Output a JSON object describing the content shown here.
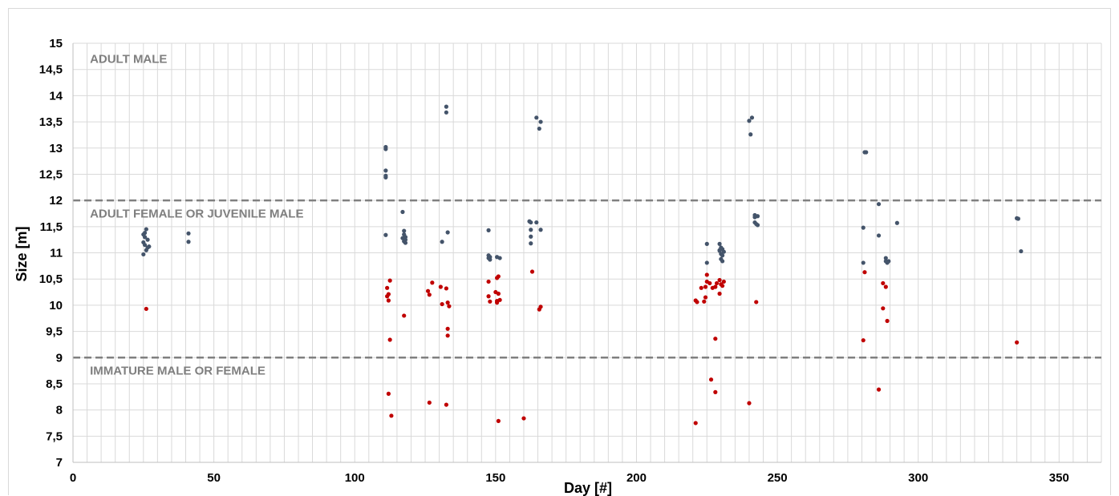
{
  "chart_data": {
    "type": "scatter",
    "xlabel": "Day [#]",
    "ylabel": "Size [m]",
    "xlim": [
      0,
      365
    ],
    "ylim": [
      7,
      15
    ],
    "x_ticks": [
      0,
      50,
      100,
      150,
      200,
      250,
      300,
      350
    ],
    "x_tick_labels": [
      "0",
      "50",
      "100",
      "150",
      "200",
      "250",
      "300",
      "350"
    ],
    "y_ticks": [
      7,
      7.5,
      8,
      8.5,
      9,
      9.5,
      10,
      10.5,
      11,
      11.5,
      12,
      12.5,
      13,
      13.5,
      14,
      14.5,
      15
    ],
    "y_tick_labels": [
      "7",
      "7,5",
      "8",
      "8,5",
      "9",
      "9,5",
      "10",
      "10,5",
      "11",
      "11,5",
      "12",
      "12,5",
      "13",
      "13,5",
      "14",
      "14,5",
      "15"
    ],
    "grid": true,
    "grid_x_step": 5,
    "grid_y_step": 0.5,
    "thresholds": [
      12,
      9
    ],
    "regions": [
      {
        "label": "ADULT MALE",
        "x": 6,
        "y": 14.7
      },
      {
        "label": "ADULT FEMALE OR JUVENILE MALE",
        "x": 6,
        "y": 11.75
      },
      {
        "label": "IMMATURE MALE OR FEMALE",
        "x": 6,
        "y": 8.75
      }
    ],
    "series": [
      {
        "color": "#44546a",
        "points": [
          [
            25,
            11.35
          ],
          [
            25.5,
            11.3
          ],
          [
            26,
            11.45
          ],
          [
            25,
            11.2
          ],
          [
            26.5,
            11.1
          ],
          [
            25.5,
            11.15
          ],
          [
            26,
            11.05
          ],
          [
            25,
            10.97
          ],
          [
            26.5,
            11.25
          ],
          [
            25.5,
            11.38
          ],
          [
            27,
            11.12
          ],
          [
            41,
            11.37
          ],
          [
            41,
            11.21
          ],
          [
            111,
            13.02
          ],
          [
            111,
            12.98
          ],
          [
            111,
            12.57
          ],
          [
            111,
            12.47
          ],
          [
            111,
            12.44
          ],
          [
            111,
            11.34
          ],
          [
            117,
            11.78
          ],
          [
            117.5,
            11.42
          ],
          [
            117.5,
            11.35
          ],
          [
            118,
            11.3
          ],
          [
            117,
            11.28
          ],
          [
            118,
            11.25
          ],
          [
            117.5,
            11.22
          ],
          [
            118,
            11.19
          ],
          [
            131,
            11.21
          ],
          [
            132.5,
            13.79
          ],
          [
            132.5,
            13.68
          ],
          [
            133,
            11.39
          ],
          [
            147.5,
            11.43
          ],
          [
            147.5,
            10.95
          ],
          [
            148,
            10.92
          ],
          [
            147.5,
            10.9
          ],
          [
            148,
            10.87
          ],
          [
            150.5,
            10.92
          ],
          [
            151.5,
            10.9
          ],
          [
            162,
            11.6
          ],
          [
            162.5,
            11.58
          ],
          [
            164.5,
            11.58
          ],
          [
            162.5,
            11.44
          ],
          [
            162.5,
            11.31
          ],
          [
            162.5,
            11.18
          ],
          [
            166,
            11.44
          ],
          [
            164.5,
            13.58
          ],
          [
            165.5,
            13.37
          ],
          [
            166,
            13.5
          ],
          [
            225,
            11.17
          ],
          [
            225,
            10.81
          ],
          [
            229.5,
            11.17
          ],
          [
            229.5,
            11.05
          ],
          [
            230,
            11.1
          ],
          [
            230.5,
            11.07
          ],
          [
            231,
            11.02
          ],
          [
            230,
            10.98
          ],
          [
            230.5,
            10.95
          ],
          [
            230,
            10.88
          ],
          [
            230.5,
            10.84
          ],
          [
            229.5,
            11.04
          ],
          [
            240,
            13.52
          ],
          [
            241,
            13.58
          ],
          [
            240.5,
            13.26
          ],
          [
            242,
            11.72
          ],
          [
            243,
            11.7
          ],
          [
            242,
            11.68
          ],
          [
            242.5,
            11.55
          ],
          [
            243,
            11.53
          ],
          [
            242,
            11.58
          ],
          [
            280.5,
            11.48
          ],
          [
            280.5,
            10.81
          ],
          [
            281,
            12.92
          ],
          [
            281.5,
            12.92
          ],
          [
            286,
            11.93
          ],
          [
            286,
            11.33
          ],
          [
            288.5,
            10.9
          ],
          [
            288.5,
            10.84
          ],
          [
            289,
            10.81
          ],
          [
            289.5,
            10.84
          ],
          [
            292.5,
            11.57
          ],
          [
            335,
            11.66
          ],
          [
            335.5,
            11.65
          ],
          [
            336.5,
            11.03
          ]
        ]
      },
      {
        "color": "#c00000",
        "points": [
          [
            26,
            9.93
          ],
          [
            111.5,
            10.33
          ],
          [
            112.5,
            10.47
          ],
          [
            112,
            10.21
          ],
          [
            111.5,
            10.17
          ],
          [
            112,
            10.09
          ],
          [
            112.5,
            9.34
          ],
          [
            112,
            8.31
          ],
          [
            113,
            7.89
          ],
          [
            117.5,
            9.8
          ],
          [
            126,
            10.27
          ],
          [
            126.5,
            10.2
          ],
          [
            127.5,
            10.43
          ],
          [
            130.5,
            10.35
          ],
          [
            131,
            10.02
          ],
          [
            132.5,
            10.32
          ],
          [
            133,
            10.05
          ],
          [
            133.5,
            9.98
          ],
          [
            133,
            9.55
          ],
          [
            133,
            9.42
          ],
          [
            126.5,
            8.14
          ],
          [
            132.5,
            8.1
          ],
          [
            147.5,
            10.45
          ],
          [
            147.5,
            10.17
          ],
          [
            148,
            10.07
          ],
          [
            150,
            10.25
          ],
          [
            150.5,
            10.52
          ],
          [
            151,
            10.55
          ],
          [
            150.5,
            10.08
          ],
          [
            151,
            10.22
          ],
          [
            151.5,
            10.1
          ],
          [
            150.5,
            10.05
          ],
          [
            151,
            7.79
          ],
          [
            160,
            7.84
          ],
          [
            163,
            10.64
          ],
          [
            165.5,
            9.92
          ],
          [
            166,
            9.97
          ],
          [
            221,
            10.09
          ],
          [
            221.5,
            10.06
          ],
          [
            221,
            7.75
          ],
          [
            223,
            10.33
          ],
          [
            224.5,
            10.35
          ],
          [
            225,
            10.58
          ],
          [
            225,
            10.45
          ],
          [
            224.5,
            10.15
          ],
          [
            224,
            10.07
          ],
          [
            226,
            10.42
          ],
          [
            227,
            10.33
          ],
          [
            228,
            10.35
          ],
          [
            228.5,
            10.42
          ],
          [
            229.5,
            10.48
          ],
          [
            230,
            10.4
          ],
          [
            231,
            10.45
          ],
          [
            230.5,
            10.37
          ],
          [
            229.5,
            10.22
          ],
          [
            228,
            9.36
          ],
          [
            226.5,
            8.58
          ],
          [
            228,
            8.34
          ],
          [
            240,
            8.13
          ],
          [
            242.5,
            10.06
          ],
          [
            281,
            10.63
          ],
          [
            280.5,
            9.33
          ],
          [
            286,
            8.39
          ],
          [
            287.5,
            10.42
          ],
          [
            288.5,
            10.35
          ],
          [
            287.5,
            9.94
          ],
          [
            289,
            9.7
          ],
          [
            335,
            9.29
          ]
        ]
      }
    ]
  }
}
